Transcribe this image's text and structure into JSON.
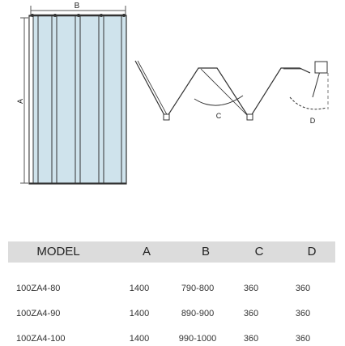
{
  "diagram": {
    "width_label": "B",
    "height_label": "A",
    "angle_label": "C",
    "depth_label": "D",
    "colors": {
      "glass": "#cfe3ec",
      "frame": "#333333",
      "line": "#555555"
    }
  },
  "table": {
    "headers": {
      "model": "MODEL",
      "a": "A",
      "b": "B",
      "c": "C",
      "d": "D"
    },
    "rows": [
      {
        "model": "100ZA4-80",
        "a": "1400",
        "b": "790-800",
        "c": "360",
        "d": "360"
      },
      {
        "model": "100ZA4-90",
        "a": "1400",
        "b": "890-900",
        "c": "360",
        "d": "360"
      },
      {
        "model": "100ZA4-100",
        "a": "1400",
        "b": "990-1000",
        "c": "360",
        "d": "360"
      }
    ]
  }
}
